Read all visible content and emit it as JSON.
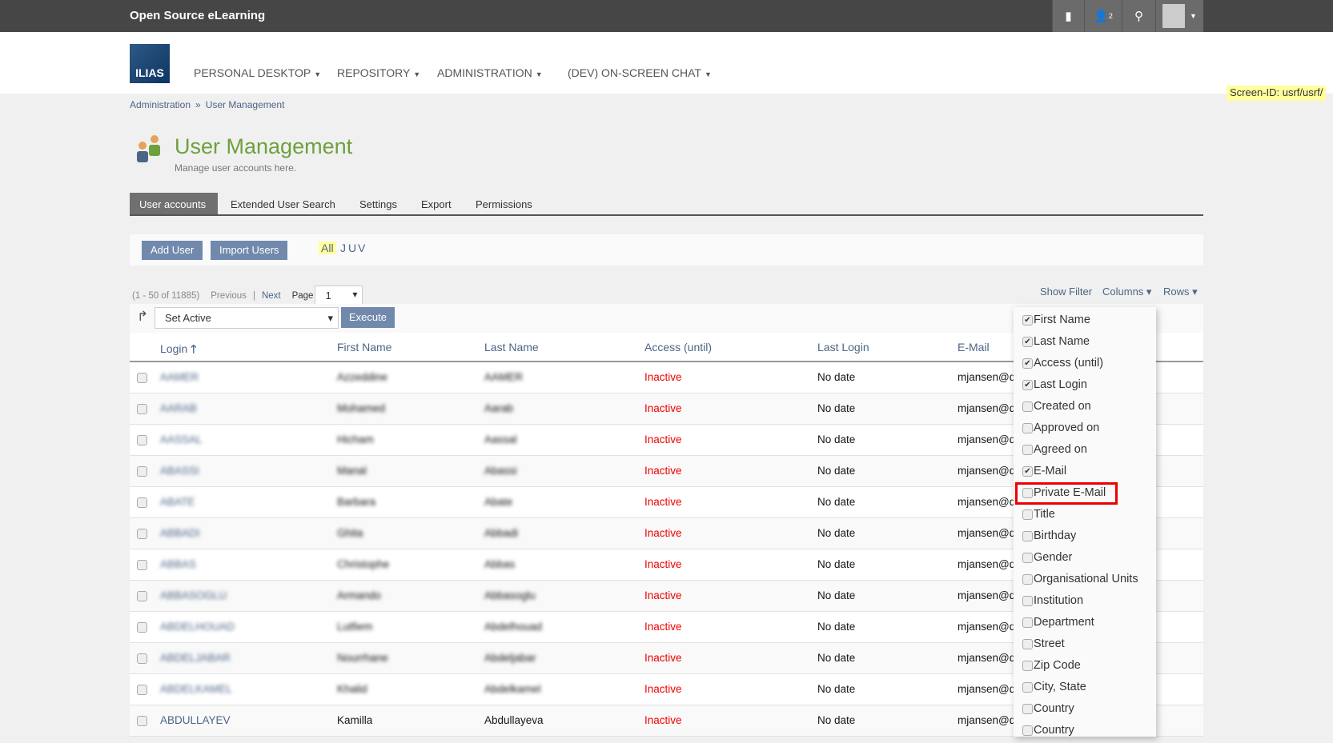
{
  "topbar": {
    "title": "Open Source eLearning",
    "icons": [
      "chat-icon",
      "users-icon",
      "search-icon",
      "avatar-icon"
    ],
    "users_badge": "2"
  },
  "header": {
    "logo": "ILIAS",
    "nav": [
      "PERSONAL DESKTOP",
      "REPOSITORY",
      "ADMINISTRATION",
      "(DEV) ON-SCREEN CHAT"
    ]
  },
  "screen_id": "Screen-ID: usrf/usrf/",
  "breadcrumb": [
    "Administration",
    "»",
    "User Management"
  ],
  "page": {
    "title": "User Management",
    "description": "Manage user accounts here."
  },
  "tabs": [
    "User accounts",
    "Extended User Search",
    "Settings",
    "Export",
    "Permissions"
  ],
  "toolbar": {
    "add_user": "Add User",
    "import_users": "Import Users",
    "letters": [
      "All",
      "J",
      "U",
      "V"
    ]
  },
  "pagination": {
    "range": "(1 - 50 of 11885)",
    "previous": "Previous",
    "sep": "|",
    "next": "Next",
    "page_label": "Page",
    "page": "1"
  },
  "table_controls": {
    "show_filter": "Show Filter",
    "columns": "Columns",
    "rows": "Rows"
  },
  "actions": {
    "selected": "Set Active",
    "execute": "Execute"
  },
  "columns": [
    "Login",
    "First Name",
    "Last Name",
    "Access (until)",
    "Last Login",
    "E-Mail"
  ],
  "rows": [
    {
      "login": "AAMER",
      "first": "Azzeddine",
      "last": "AAMER",
      "access": "Inactive",
      "last_login": "No date",
      "email": "mjansen@d",
      "blurred": true
    },
    {
      "login": "AARAB",
      "first": "Mohamed",
      "last": "Aarab",
      "access": "Inactive",
      "last_login": "No date",
      "email": "mjansen@d",
      "blurred": true
    },
    {
      "login": "AASSAL",
      "first": "Hicham",
      "last": "Aassal",
      "access": "Inactive",
      "last_login": "No date",
      "email": "mjansen@d",
      "blurred": true
    },
    {
      "login": "ABASSI",
      "first": "Manal",
      "last": "Abassi",
      "access": "Inactive",
      "last_login": "No date",
      "email": "mjansen@d",
      "blurred": true
    },
    {
      "login": "ABATE",
      "first": "Barbara",
      "last": "Abate",
      "access": "Inactive",
      "last_login": "No date",
      "email": "mjansen@d",
      "blurred": true
    },
    {
      "login": "ABBADI",
      "first": "Ghita",
      "last": "Abbadi",
      "access": "Inactive",
      "last_login": "No date",
      "email": "mjansen@d",
      "blurred": true
    },
    {
      "login": "ABBAS",
      "first": "Christophe",
      "last": "Abbas",
      "access": "Inactive",
      "last_login": "No date",
      "email": "mjansen@d",
      "blurred": true
    },
    {
      "login": "ABBASOGLU",
      "first": "Armando",
      "last": "Abbasoglu",
      "access": "Inactive",
      "last_login": "No date",
      "email": "mjansen@d",
      "blurred": true
    },
    {
      "login": "ABDELHOUAD",
      "first": "Lutfiem",
      "last": "Abdelhouad",
      "access": "Inactive",
      "last_login": "No date",
      "email": "mjansen@d",
      "blurred": true
    },
    {
      "login": "ABDELJABAR",
      "first": "Nourrhane",
      "last": "Abdeljabar",
      "access": "Inactive",
      "last_login": "No date",
      "email": "mjansen@d",
      "blurred": true
    },
    {
      "login": "ABDELKAMEL",
      "first": "Khalid",
      "last": "Abdelkamel",
      "access": "Inactive",
      "last_login": "No date",
      "email": "mjansen@d",
      "blurred": true
    },
    {
      "login": "ABDULLAYEV",
      "first": "Kamilla",
      "last": "Abdullayeva",
      "access": "Inactive",
      "last_login": "No date",
      "email": "mjansen@d",
      "blurred": false
    }
  ],
  "column_menu": [
    {
      "label": "First Name",
      "checked": true
    },
    {
      "label": "Last Name",
      "checked": true
    },
    {
      "label": "Access (until)",
      "checked": true
    },
    {
      "label": "Last Login",
      "checked": true
    },
    {
      "label": "Created on",
      "checked": false
    },
    {
      "label": "Approved on",
      "checked": false
    },
    {
      "label": "Agreed on",
      "checked": false
    },
    {
      "label": "E-Mail",
      "checked": true
    },
    {
      "label": "Private E-Mail",
      "checked": false,
      "highlighted": true
    },
    {
      "label": "Title",
      "checked": false
    },
    {
      "label": "Birthday",
      "checked": false
    },
    {
      "label": "Gender",
      "checked": false
    },
    {
      "label": "Organisational Units",
      "checked": false
    },
    {
      "label": "Institution",
      "checked": false
    },
    {
      "label": "Department",
      "checked": false
    },
    {
      "label": "Street",
      "checked": false
    },
    {
      "label": "Zip Code",
      "checked": false
    },
    {
      "label": "City, State",
      "checked": false
    },
    {
      "label": "Country",
      "checked": false
    },
    {
      "label": "Country",
      "checked": false
    }
  ],
  "colors": {
    "accent": "#7189ad",
    "title": "#6ea03c",
    "inactive": "#ee0000",
    "highlight": "#ee0000"
  }
}
